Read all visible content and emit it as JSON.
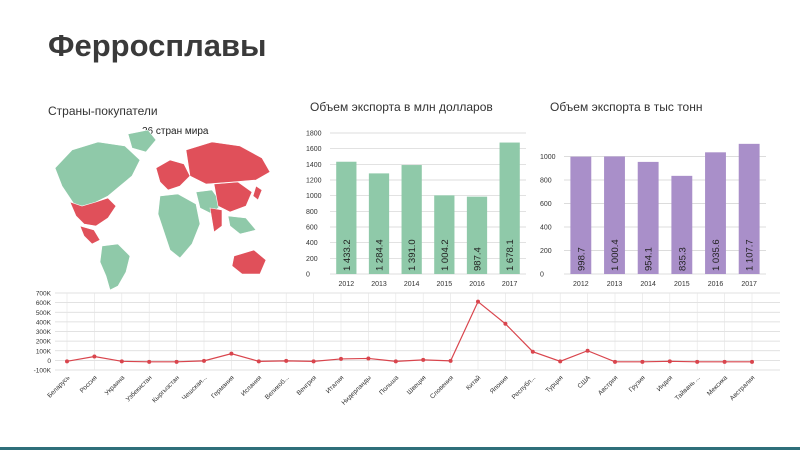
{
  "title": "Ферросплавы",
  "map": {
    "heading": "Страны-покупатели",
    "caption": "26 стран мира",
    "colors": {
      "buyer": "#e0505a",
      "other": "#8fc9a9"
    }
  },
  "chart_data": [
    {
      "type": "bar",
      "title": "Объем экспорта в млн долларов",
      "categories": [
        "2012",
        "2013",
        "2014",
        "2015",
        "2016",
        "2017"
      ],
      "values": [
        1433.2,
        1284.4,
        1391.0,
        1004.2,
        987.4,
        1678.1
      ],
      "value_labels": [
        "1 433.2",
        "1 284.4",
        "1 391.0",
        "1 004.2",
        "987.4",
        "1 678.1"
      ],
      "yticks": [
        0,
        200,
        400,
        600,
        800,
        1000,
        1200,
        1400,
        1600,
        1800
      ],
      "ylim": [
        0,
        1800
      ],
      "color": "#8fc9a9",
      "grid": true
    },
    {
      "type": "bar",
      "title": "Объем экспорта в тыс тонн",
      "categories": [
        "2012",
        "2013",
        "2014",
        "2015",
        "2016",
        "2017"
      ],
      "values": [
        998.7,
        1000.4,
        954.1,
        835.3,
        1035.6,
        1107.7
      ],
      "value_labels": [
        "998.7",
        "1 000.4",
        "954.1",
        "835.3",
        "1 035.6",
        "1 107.7"
      ],
      "yticks": [
        0,
        200,
        400,
        600,
        800,
        1000
      ],
      "ylim": [
        0,
        1200
      ],
      "color": "#a98fc9",
      "grid": true
    },
    {
      "type": "line",
      "categories": [
        "Беларусь",
        "Россия",
        "Украина",
        "Узбекистан",
        "Кыргызстан",
        "Чешская...",
        "Германия",
        "Испания",
        "Великоб...",
        "Венгрия",
        "Италия",
        "Нидерланды",
        "Польша",
        "Швеция",
        "Словения",
        "Китай",
        "Япония",
        "Республ...",
        "Турция",
        "США",
        "Австрия",
        "Грузия",
        "Индия",
        "Тайвань ...",
        "Мексика",
        "Австралия"
      ],
      "values": [
        -10000,
        40000,
        -10000,
        -15000,
        -15000,
        -5000,
        70000,
        -10000,
        -5000,
        -10000,
        15000,
        20000,
        -10000,
        5000,
        -5000,
        610000,
        380000,
        90000,
        -10000,
        100000,
        -15000,
        -15000,
        -10000,
        -15000,
        -15000,
        -15000
      ],
      "yticks": [
        -100000,
        0,
        100000,
        200000,
        300000,
        400000,
        500000,
        600000,
        700000
      ],
      "ytick_labels": [
        "-100K",
        "0",
        "100K",
        "200K",
        "300K",
        "400K",
        "500K",
        "600K",
        "700K"
      ],
      "ylim": [
        -100000,
        700000
      ],
      "color": "#d9454d",
      "grid": true
    }
  ]
}
